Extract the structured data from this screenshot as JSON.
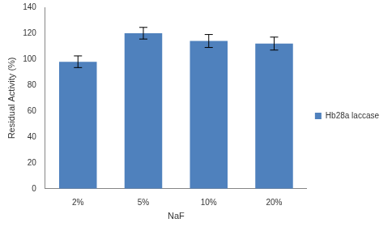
{
  "chart_data": {
    "type": "bar",
    "categories": [
      "2%",
      "5%",
      "10%",
      "20%"
    ],
    "series": [
      {
        "name": "Hb28a laccase",
        "color": "#4f81bd",
        "values": [
          98,
          120,
          114,
          112
        ],
        "errors": [
          4.5,
          4.5,
          5,
          5
        ]
      }
    ],
    "x_label": "NaF",
    "y_label": "Residual Activity (%)",
    "ylim": [
      0,
      140
    ],
    "yticks": [
      0,
      20,
      40,
      60,
      80,
      100,
      120,
      140
    ],
    "grid": false,
    "legend": "right"
  }
}
